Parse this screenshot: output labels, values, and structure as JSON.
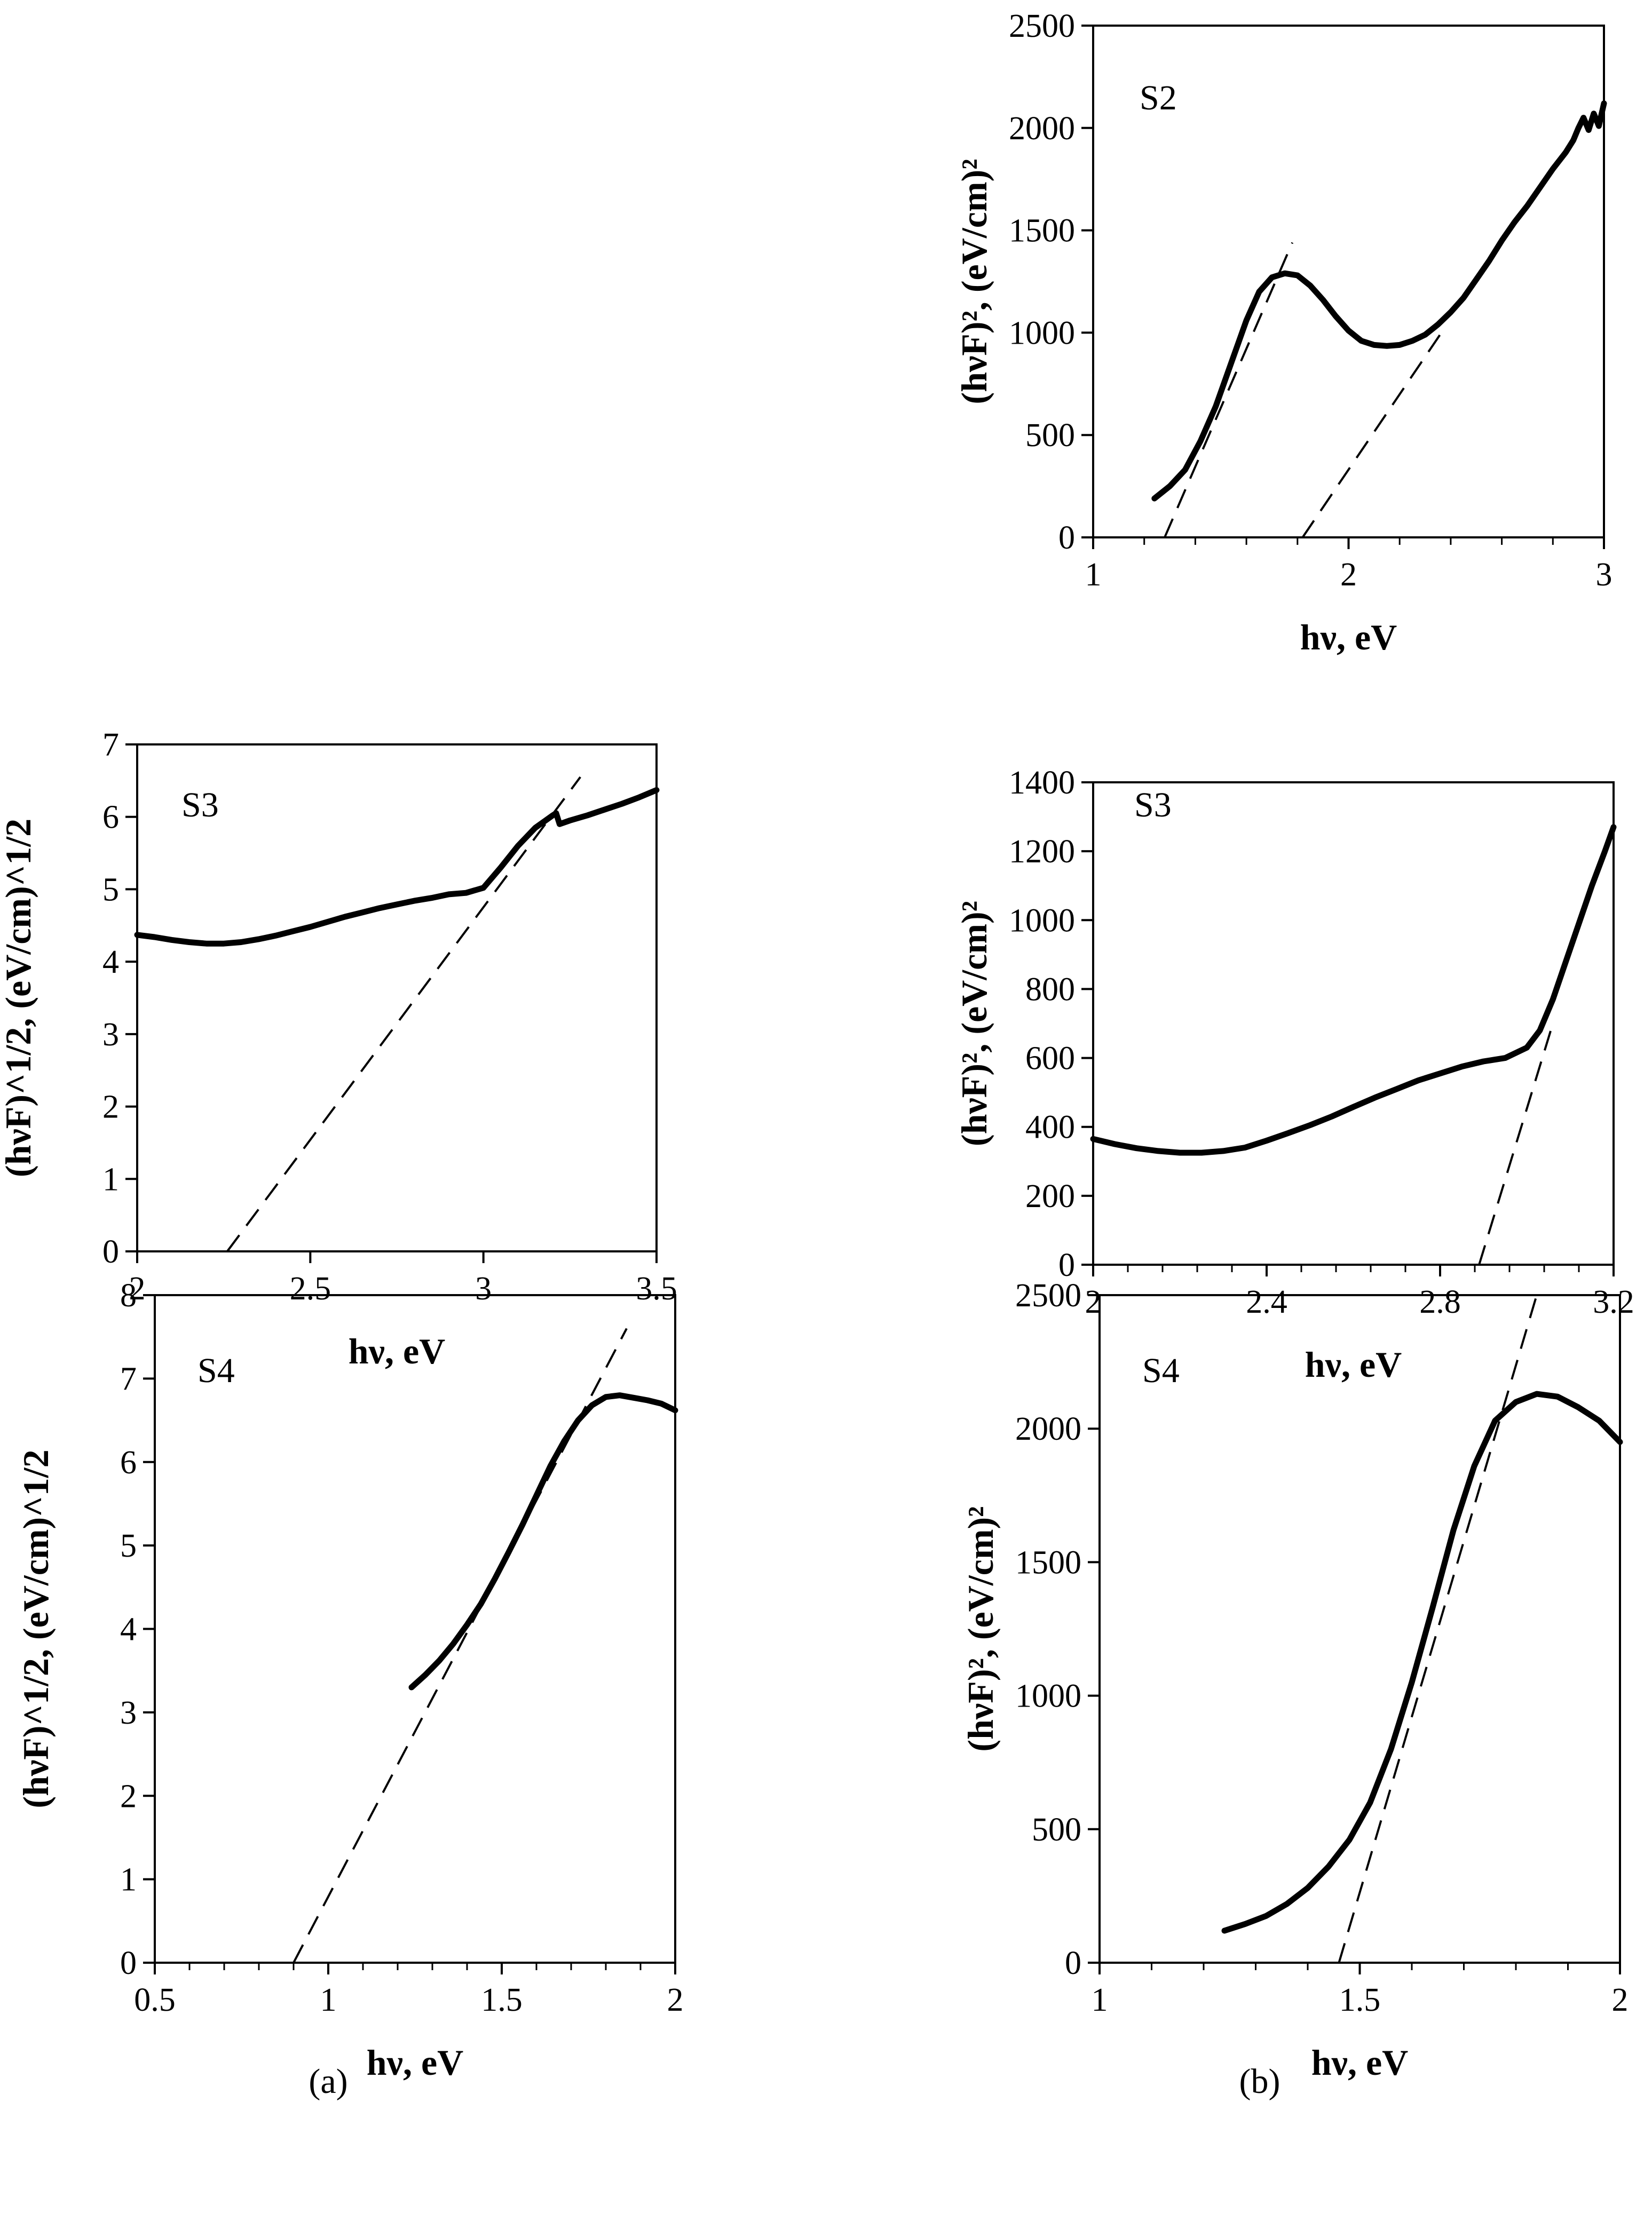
{
  "figure": {
    "sub_labels": [
      "(a)",
      "(b)"
    ]
  },
  "chart_data": [
    {
      "id": "b-s2",
      "type": "line",
      "label": "S2",
      "xlabel": "hν, eV",
      "ylabel": "(hνF)², (eV/cm)²",
      "xlim": [
        1,
        3
      ],
      "ylim": [
        0,
        2500
      ],
      "xticks": [
        "1",
        "2",
        "3"
      ],
      "yticks": [
        "0",
        "500",
        "1000",
        "1500",
        "2000",
        "2500"
      ],
      "series": [
        {
          "name": "S2 data",
          "style": "solid",
          "x": [
            1.24,
            1.3,
            1.36,
            1.42,
            1.48,
            1.54,
            1.6,
            1.65,
            1.7,
            1.75,
            1.8,
            1.85,
            1.9,
            1.95,
            2.0,
            2.05,
            2.1,
            2.15,
            2.2,
            2.25,
            2.3,
            2.35,
            2.4,
            2.45,
            2.5,
            2.55,
            2.6,
            2.65,
            2.7,
            2.75,
            2.8,
            2.85,
            2.88,
            2.9,
            2.92,
            2.94,
            2.96,
            2.98,
            3.0
          ],
          "y": [
            190,
            250,
            330,
            470,
            640,
            850,
            1060,
            1200,
            1270,
            1290,
            1280,
            1230,
            1160,
            1080,
            1010,
            960,
            940,
            935,
            940,
            960,
            990,
            1040,
            1100,
            1170,
            1260,
            1350,
            1450,
            1540,
            1620,
            1710,
            1800,
            1880,
            1940,
            2000,
            2050,
            1990,
            2070,
            2010,
            2120
          ]
        },
        {
          "name": "tangent 1",
          "style": "dashed",
          "x": [
            1.28,
            1.78
          ],
          "y": [
            0,
            1440
          ]
        },
        {
          "name": "tangent 2",
          "style": "dashed",
          "x": [
            1.82,
            2.38
          ],
          "y": [
            0,
            1030
          ]
        }
      ]
    },
    {
      "id": "a-s3",
      "type": "line",
      "label": "S3",
      "xlabel": "hν, eV",
      "ylabel": "(hνF)^1/2, (eV/cm)^1/2",
      "xlim": [
        2,
        3.5
      ],
      "ylim": [
        0,
        7
      ],
      "xticks": [
        "2",
        "2.5",
        "3",
        "3.5"
      ],
      "yticks": [
        "0",
        "1",
        "2",
        "3",
        "4",
        "5",
        "6",
        "7"
      ],
      "series": [
        {
          "name": "S3 data",
          "style": "solid",
          "x": [
            2.0,
            2.05,
            2.1,
            2.15,
            2.2,
            2.25,
            2.3,
            2.35,
            2.4,
            2.45,
            2.5,
            2.55,
            2.6,
            2.65,
            2.7,
            2.75,
            2.8,
            2.85,
            2.9,
            2.95,
            3.0,
            3.05,
            3.1,
            3.15,
            3.2,
            3.21,
            3.22,
            3.25,
            3.3,
            3.35,
            3.4,
            3.45,
            3.5
          ],
          "y": [
            4.37,
            4.34,
            4.3,
            4.27,
            4.25,
            4.25,
            4.27,
            4.31,
            4.36,
            4.42,
            4.48,
            4.55,
            4.62,
            4.68,
            4.74,
            4.79,
            4.84,
            4.88,
            4.93,
            4.95,
            5.02,
            5.3,
            5.6,
            5.85,
            6.02,
            6.05,
            5.9,
            5.95,
            6.02,
            6.1,
            6.18,
            6.27,
            6.37
          ]
        },
        {
          "name": "tangent",
          "style": "dashed",
          "x": [
            2.26,
            3.28
          ],
          "y": [
            0,
            6.55
          ]
        }
      ]
    },
    {
      "id": "b-s3",
      "type": "line",
      "label": "S3",
      "xlabel": "hν, eV",
      "ylabel": "(hνF)², (eV/cm)²",
      "xlim": [
        2,
        3.2
      ],
      "ylim": [
        0,
        1400
      ],
      "xticks": [
        "2",
        "2.4",
        "2.8",
        "3.2"
      ],
      "yticks": [
        "0",
        "200",
        "400",
        "600",
        "800",
        "1000",
        "1200",
        "1400"
      ],
      "series": [
        {
          "name": "S3 data",
          "style": "solid",
          "x": [
            2.0,
            2.05,
            2.1,
            2.15,
            2.2,
            2.25,
            2.3,
            2.35,
            2.4,
            2.45,
            2.5,
            2.55,
            2.6,
            2.65,
            2.7,
            2.75,
            2.8,
            2.85,
            2.9,
            2.95,
            3.0,
            3.03,
            3.06,
            3.09,
            3.12,
            3.15,
            3.18,
            3.2
          ],
          "y": [
            365,
            350,
            338,
            330,
            325,
            325,
            330,
            340,
            360,
            382,
            405,
            430,
            458,
            485,
            510,
            535,
            555,
            575,
            590,
            600,
            630,
            680,
            770,
            880,
            990,
            1100,
            1200,
            1270
          ]
        },
        {
          "name": "tangent",
          "style": "dashed",
          "x": [
            2.89,
            3.06
          ],
          "y": [
            0,
            700
          ]
        }
      ]
    },
    {
      "id": "a-s4",
      "type": "line",
      "label": "S4",
      "xlabel": "hν, eV",
      "ylabel": "(hνF)^1/2, (eV/cm)^1/2",
      "xlim": [
        0.5,
        2
      ],
      "ylim": [
        0,
        8
      ],
      "xticks": [
        "0.5",
        "1",
        "1.5",
        "2"
      ],
      "yticks": [
        "0",
        "1",
        "2",
        "3",
        "4",
        "5",
        "6",
        "7",
        "8"
      ],
      "series": [
        {
          "name": "S4 data",
          "style": "solid",
          "x": [
            1.24,
            1.28,
            1.32,
            1.36,
            1.4,
            1.44,
            1.48,
            1.52,
            1.56,
            1.6,
            1.64,
            1.68,
            1.72,
            1.76,
            1.8,
            1.84,
            1.88,
            1.92,
            1.96,
            2.0
          ],
          "y": [
            3.3,
            3.45,
            3.62,
            3.82,
            4.05,
            4.3,
            4.6,
            4.92,
            5.25,
            5.6,
            5.95,
            6.25,
            6.5,
            6.68,
            6.78,
            6.8,
            6.77,
            6.74,
            6.7,
            6.62
          ]
        },
        {
          "name": "tangent",
          "style": "dashed",
          "x": [
            0.9,
            1.86
          ],
          "y": [
            0,
            7.6
          ]
        }
      ]
    },
    {
      "id": "b-s4",
      "type": "line",
      "label": "S4",
      "xlabel": "hν, eV",
      "ylabel": "(hνF)², (eV/cm)²",
      "xlim": [
        1,
        2
      ],
      "ylim": [
        0,
        2500
      ],
      "xticks": [
        "1",
        "1.5",
        "2"
      ],
      "yticks": [
        "0",
        "500",
        "1000",
        "1500",
        "2000",
        "2500"
      ],
      "series": [
        {
          "name": "S4 data",
          "style": "solid",
          "x": [
            1.24,
            1.28,
            1.32,
            1.36,
            1.4,
            1.44,
            1.48,
            1.52,
            1.56,
            1.6,
            1.64,
            1.68,
            1.72,
            1.76,
            1.8,
            1.84,
            1.88,
            1.92,
            1.96,
            2.0
          ],
          "y": [
            120,
            145,
            175,
            220,
            280,
            360,
            460,
            600,
            800,
            1050,
            1330,
            1620,
            1860,
            2030,
            2100,
            2130,
            2120,
            2080,
            2030,
            1950
          ]
        },
        {
          "name": "tangent",
          "style": "dashed",
          "x": [
            1.46,
            1.84
          ],
          "y": [
            0,
            2500
          ]
        }
      ]
    }
  ]
}
